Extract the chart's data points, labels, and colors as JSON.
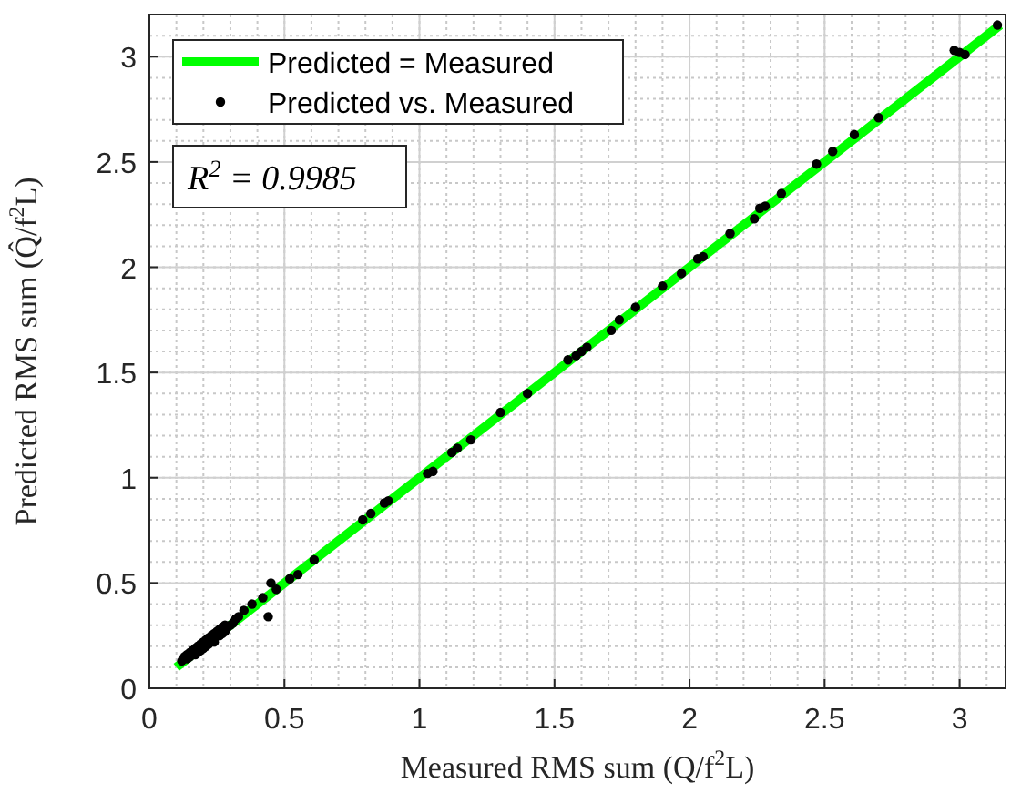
{
  "chart_data": {
    "type": "scatter",
    "xlabel": "Measured RMS sum (Q/f$^{2}$L)",
    "ylabel": "Predicted RMS sum (Q̂/f$^{2}$L)",
    "xlim": [
      0,
      3.17
    ],
    "ylim": [
      0,
      3.2
    ],
    "xticks": [
      0,
      0.5,
      1,
      1.5,
      2,
      2.5,
      3
    ],
    "yticks": [
      0,
      0.5,
      1,
      1.5,
      2,
      2.5,
      3
    ],
    "grid": true,
    "legend": "top left",
    "annotations": [
      "R$^{2}$ = 0.9985"
    ],
    "series": [
      {
        "name": "Predicted = Measured",
        "type": "line",
        "color": "#00ff00",
        "line_style": "solid",
        "x": [
          0.1,
          3.15
        ],
        "values": [
          0.1,
          3.15
        ]
      },
      {
        "name": "Predicted vs. Measured",
        "color": "#000000",
        "marker": "circle",
        "x": [
          0.12,
          0.13,
          0.14,
          0.14,
          0.15,
          0.15,
          0.16,
          0.17,
          0.17,
          0.18,
          0.18,
          0.19,
          0.19,
          0.2,
          0.2,
          0.21,
          0.21,
          0.22,
          0.22,
          0.23,
          0.24,
          0.24,
          0.25,
          0.26,
          0.26,
          0.27,
          0.27,
          0.28,
          0.28,
          0.29,
          0.3,
          0.31,
          0.32,
          0.33,
          0.35,
          0.38,
          0.42,
          0.44,
          0.45,
          0.47,
          0.52,
          0.55,
          0.61,
          0.79,
          0.82,
          0.87,
          1.03,
          0.885,
          1.05,
          1.12,
          1.14,
          1.19,
          1.3,
          1.4,
          1.55,
          1.58,
          1.6,
          1.62,
          1.71,
          1.74,
          1.8,
          1.9,
          1.97,
          2.03,
          2.05,
          2.15,
          2.24,
          2.26,
          2.28,
          2.34,
          2.47,
          2.53,
          2.61,
          2.7,
          2.98,
          3.0,
          3.02,
          3.14
        ],
        "values": [
          0.13,
          0.15,
          0.14,
          0.16,
          0.15,
          0.17,
          0.18,
          0.16,
          0.19,
          0.17,
          0.2,
          0.18,
          0.21,
          0.19,
          0.22,
          0.2,
          0.23,
          0.21,
          0.24,
          0.25,
          0.22,
          0.26,
          0.27,
          0.25,
          0.28,
          0.26,
          0.29,
          0.27,
          0.3,
          0.29,
          0.3,
          0.31,
          0.33,
          0.34,
          0.37,
          0.4,
          0.43,
          0.34,
          0.5,
          0.47,
          0.52,
          0.54,
          0.61,
          0.8,
          0.83,
          0.88,
          1.02,
          0.89,
          1.03,
          1.12,
          1.14,
          1.18,
          1.31,
          1.4,
          1.56,
          1.58,
          1.6,
          1.62,
          1.7,
          1.75,
          1.81,
          1.91,
          1.97,
          2.04,
          2.05,
          2.16,
          2.23,
          2.28,
          2.29,
          2.35,
          2.49,
          2.55,
          2.63,
          2.71,
          3.03,
          3.02,
          3.01,
          3.15
        ]
      }
    ]
  }
}
